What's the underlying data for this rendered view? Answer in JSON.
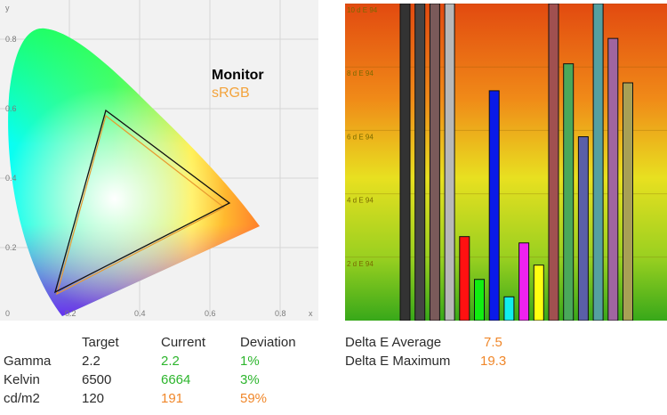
{
  "gamut": {
    "y_ticks": [
      "0.8",
      "0.6",
      "0.4",
      "0.2",
      "0"
    ],
    "y_axis_label": "y",
    "x_ticks": [
      "0.2",
      "0.4",
      "0.6",
      "0.8"
    ],
    "x_axis_label": "x",
    "legend_monitor": "Monitor",
    "legend_srgb": "sRGB"
  },
  "measurements": {
    "headers": [
      "Target",
      "Current",
      "Deviation"
    ],
    "rows": [
      {
        "label": "Gamma",
        "target": "2.2",
        "current": "2.2",
        "deviation": "1%"
      },
      {
        "label": "Kelvin",
        "target": "6500",
        "current": "6664",
        "deviation": "3%"
      },
      {
        "label": "cd/m2",
        "target": "120",
        "current": "191",
        "deviation": "59%"
      }
    ]
  },
  "delta_e": {
    "average_label": "Delta E Average",
    "average_value": "7.5",
    "maximum_label": "Delta E Maximum",
    "maximum_value": "19.3"
  },
  "colors": {
    "green_value": "#2db52d",
    "orange_value": "#f0872a"
  },
  "chart_data": [
    {
      "type": "bar",
      "title": "",
      "ylabel": "",
      "y_tick_labels": [
        "10 d E 94",
        "8 d E 94",
        "6 d E 94",
        "4 d E 94",
        "2 d E 94"
      ],
      "y_ticks": [
        10,
        8,
        6,
        4,
        2
      ],
      "ylim": [
        0,
        10
      ],
      "bars": [
        {
          "value": 10,
          "color": "#333333"
        },
        {
          "value": 10,
          "color": "#444444"
        },
        {
          "value": 10,
          "color": "#7a5a5a"
        },
        {
          "value": 10,
          "color": "#b8b8b8"
        },
        {
          "value": 2.65,
          "color": "#ff1111"
        },
        {
          "value": 1.3,
          "color": "#11ee11"
        },
        {
          "value": 7.25,
          "color": "#0a1ae8"
        },
        {
          "value": 0.75,
          "color": "#11eeee"
        },
        {
          "value": 2.45,
          "color": "#ee22ee"
        },
        {
          "value": 1.75,
          "color": "#ffff11"
        },
        {
          "value": 10,
          "color": "#a05050"
        },
        {
          "value": 8.1,
          "color": "#4aa85a"
        },
        {
          "value": 5.8,
          "color": "#5a5fa8"
        },
        {
          "value": 10,
          "color": "#55a0a0"
        },
        {
          "value": 8.9,
          "color": "#a065a0"
        },
        {
          "value": 7.5,
          "color": "#a8a055"
        }
      ]
    }
  ]
}
